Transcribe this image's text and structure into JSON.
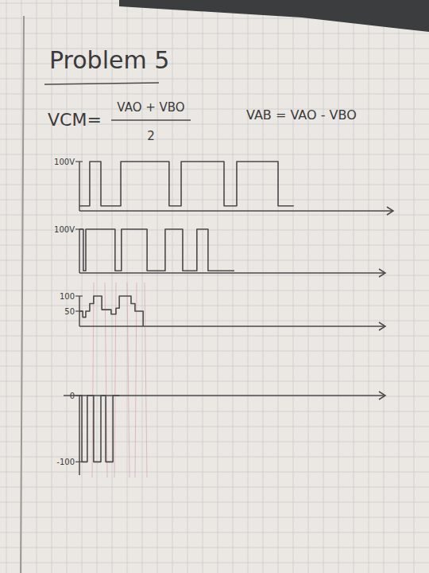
{
  "header": {
    "title": "Problem 5",
    "formula_cm": {
      "lhs": "VCM=",
      "numerator": "VAO + VBO",
      "denominator": "2"
    },
    "formula_ab": "VAB = VAO - VBO"
  },
  "chart_data": [
    {
      "type": "line",
      "x": [
        0,
        3.4,
        3.4,
        7.1,
        7.1,
        13.7,
        13.7,
        29.7,
        29.7,
        33.7,
        33.7,
        47.9,
        47.9,
        52.1,
        52.1,
        65.8,
        65.8,
        71
      ],
      "values": [
        10,
        10,
        100,
        100,
        10,
        10,
        100,
        100,
        10,
        10,
        100,
        100,
        10,
        10,
        100,
        100,
        10,
        10
      ],
      "xlim": [
        0,
        100
      ],
      "ylim": [
        0,
        100
      ],
      "yticks": [
        {
          "value": 100,
          "label": "100V"
        }
      ],
      "tick_labels": "y",
      "color": "#4a4a4a",
      "line_style": "solid"
    },
    {
      "type": "line",
      "x": [
        0,
        1.3,
        1.3,
        2.1,
        2.1,
        11.8,
        11.8,
        13.9,
        13.9,
        22.4,
        22.4,
        28.4,
        28.4,
        34.2,
        34.2,
        38.9,
        38.9,
        42.6,
        42.6,
        51.3
      ],
      "values": [
        100,
        100,
        5,
        5,
        100,
        100,
        5,
        5,
        100,
        100,
        5,
        5,
        100,
        100,
        5,
        5,
        100,
        100,
        5,
        5
      ],
      "xlim": [
        0,
        100
      ],
      "ylim": [
        0,
        100
      ],
      "yticks": [
        {
          "value": 100,
          "label": "100V"
        }
      ],
      "tick_labels": "y",
      "color": "#4a4a4a",
      "line_style": "solid"
    },
    {
      "type": "line",
      "x": [
        0,
        1.1,
        1.1,
        2.1,
        2.1,
        3.4,
        3.4,
        4.7,
        4.7,
        7.4,
        7.4,
        10.5,
        10.5,
        12.1,
        12.1,
        13.2,
        13.2,
        17.1,
        17.1,
        18.4,
        18.4,
        21.1,
        21.1
      ],
      "values": [
        50,
        50,
        30,
        30,
        50,
        50,
        75,
        75,
        100,
        100,
        55,
        55,
        40,
        40,
        60,
        60,
        100,
        100,
        75,
        75,
        50,
        50,
        0
      ],
      "xlim": [
        0,
        100
      ],
      "ylim": [
        0,
        100
      ],
      "yticks": [
        50,
        100
      ],
      "tick_labels": "y",
      "color": "#4a4a4a",
      "line_style": "solid"
    },
    {
      "type": "line",
      "x": [
        0,
        0.8,
        0.8,
        2.6,
        2.6,
        4.7,
        4.7,
        7.1,
        7.1,
        8.7,
        8.7,
        11.1,
        11.1,
        13.2
      ],
      "values": [
        0,
        0,
        -100,
        -100,
        0,
        0,
        -100,
        -100,
        0,
        0,
        -100,
        -100,
        0,
        0
      ],
      "xlim": [
        0,
        100
      ],
      "ylim": [
        -120,
        0
      ],
      "yticks": [
        0,
        -100
      ],
      "tick_labels": "y",
      "color": "#4a4a4a",
      "line_style": "solid"
    }
  ]
}
